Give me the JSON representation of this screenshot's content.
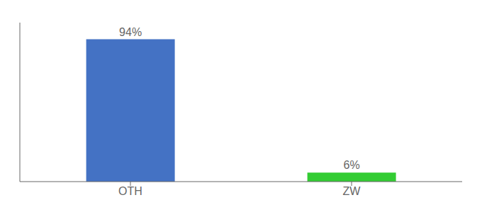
{
  "chart_data": {
    "type": "bar",
    "categories": [
      "OTH",
      "ZW"
    ],
    "values": [
      94,
      6
    ],
    "value_labels": [
      "94%",
      "6%"
    ],
    "colors": [
      "#4472c4",
      "#33cc33"
    ],
    "ylim": [
      0,
      105
    ],
    "data_labels": true,
    "tick_labels": "x",
    "grid": false
  }
}
